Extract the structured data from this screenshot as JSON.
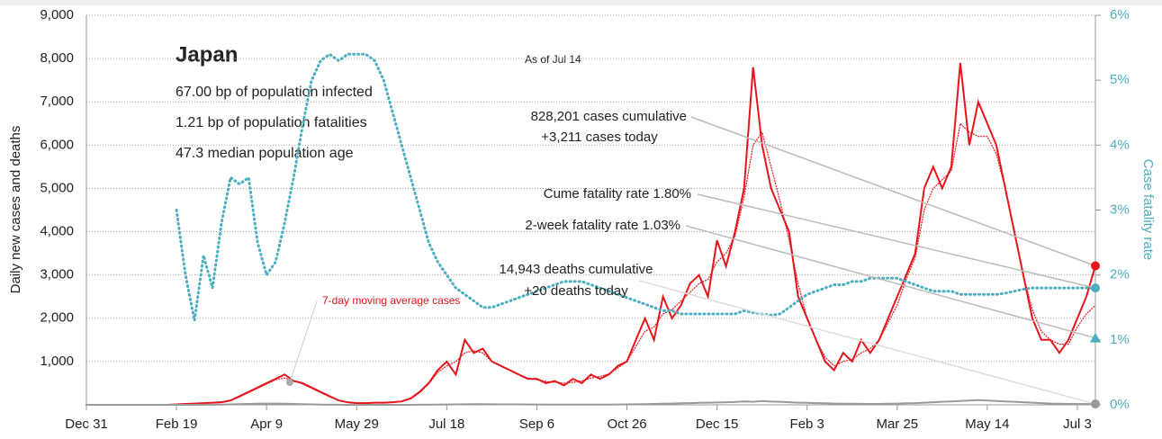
{
  "chart_data": {
    "type": "line",
    "title": "Japan",
    "stats": [
      "67.00 bp of population infected",
      "1.21 bp of population fatalities",
      "47.3 median population age"
    ],
    "as_of": "As of Jul 14",
    "ylabel": "Daily new cases and deaths",
    "y2label": "Case fatality rate",
    "xlim": [
      0,
      560
    ],
    "xticks": [
      {
        "value": 0,
        "label": "Dec 31"
      },
      {
        "value": 50,
        "label": "Feb 19"
      },
      {
        "value": 100,
        "label": "Apr 9"
      },
      {
        "value": 150,
        "label": "May 29"
      },
      {
        "value": 200,
        "label": "Jul 18"
      },
      {
        "value": 250,
        "label": "Sep 6"
      },
      {
        "value": 300,
        "label": "Oct 26"
      },
      {
        "value": 350,
        "label": "Dec 15"
      },
      {
        "value": 400,
        "label": "Feb 3"
      },
      {
        "value": 450,
        "label": "Mar 25"
      },
      {
        "value": 500,
        "label": "May 14"
      },
      {
        "value": 550,
        "label": "Jul 3"
      }
    ],
    "ylim": [
      0,
      9000
    ],
    "yticks": [
      {
        "value": 1000,
        "label": "1,000"
      },
      {
        "value": 2000,
        "label": "2,000"
      },
      {
        "value": 3000,
        "label": "3,000"
      },
      {
        "value": 4000,
        "label": "4,000"
      },
      {
        "value": 5000,
        "label": "5,000"
      },
      {
        "value": 6000,
        "label": "6,000"
      },
      {
        "value": 7000,
        "label": "7,000"
      },
      {
        "value": 8000,
        "label": "8,000"
      },
      {
        "value": 9000,
        "label": "9,000"
      }
    ],
    "y2lim": [
      0,
      6
    ],
    "y2ticks": [
      {
        "value": 0,
        "label": "0%"
      },
      {
        "value": 1,
        "label": "1%"
      },
      {
        "value": 2,
        "label": "2%"
      },
      {
        "value": 3,
        "label": "3%"
      },
      {
        "value": 4,
        "label": "4%"
      },
      {
        "value": 5,
        "label": "5%"
      },
      {
        "value": 6,
        "label": "6%"
      }
    ],
    "grid": true,
    "x": [
      0,
      5,
      10,
      15,
      20,
      25,
      30,
      35,
      40,
      45,
      50,
      55,
      60,
      65,
      70,
      75,
      80,
      85,
      90,
      95,
      100,
      105,
      110,
      115,
      120,
      125,
      130,
      135,
      140,
      145,
      150,
      155,
      160,
      165,
      170,
      175,
      180,
      185,
      190,
      195,
      200,
      205,
      210,
      215,
      220,
      225,
      230,
      235,
      240,
      245,
      250,
      255,
      260,
      265,
      270,
      275,
      280,
      285,
      290,
      295,
      300,
      305,
      310,
      315,
      320,
      325,
      330,
      335,
      340,
      345,
      350,
      355,
      360,
      365,
      370,
      375,
      380,
      385,
      390,
      395,
      400,
      405,
      410,
      415,
      420,
      425,
      430,
      435,
      440,
      445,
      450,
      455,
      460,
      465,
      470,
      475,
      480,
      485,
      490,
      495,
      500,
      505,
      510,
      515,
      520,
      525,
      530,
      535,
      540,
      545,
      550,
      555,
      560
    ],
    "series": [
      {
        "color": "#e8141c",
        "style": "solid",
        "values": [
          0,
          0,
          0,
          0,
          0,
          0,
          0,
          0,
          0,
          0,
          10,
          20,
          30,
          40,
          50,
          60,
          100,
          200,
          300,
          400,
          500,
          600,
          700,
          550,
          500,
          400,
          300,
          200,
          100,
          60,
          40,
          40,
          50,
          50,
          60,
          80,
          150,
          300,
          500,
          800,
          1000,
          700,
          1500,
          1200,
          1300,
          1000,
          900,
          800,
          700,
          600,
          600,
          500,
          550,
          450,
          600,
          500,
          700,
          600,
          700,
          900,
          1000,
          1500,
          2000,
          1500,
          2500,
          2000,
          2300,
          2800,
          3000,
          2500,
          3800,
          3200,
          4000,
          5000,
          7800,
          6000,
          5000,
          4500,
          4000,
          2500,
          2000,
          1500,
          1000,
          800,
          1200,
          1000,
          1500,
          1200,
          1500,
          2000,
          2500,
          3000,
          3500,
          5000,
          5500,
          5000,
          5500,
          7900,
          6000,
          7000,
          6500,
          6000,
          5000,
          4000,
          3000,
          2000,
          1500,
          1500,
          1200,
          1500,
          2000,
          2500,
          3211
        ]
      },
      {
        "name": "7-day moving average cases",
        "color": "#e8141c",
        "style": "dotted",
        "values": [
          0,
          0,
          0,
          0,
          0,
          0,
          0,
          0,
          0,
          0,
          10,
          20,
          30,
          40,
          50,
          70,
          100,
          180,
          280,
          380,
          480,
          580,
          620,
          560,
          480,
          380,
          280,
          180,
          100,
          60,
          40,
          40,
          45,
          50,
          60,
          80,
          140,
          280,
          480,
          750,
          900,
          1000,
          1200,
          1250,
          1200,
          1000,
          900,
          800,
          700,
          620,
          580,
          540,
          520,
          500,
          520,
          550,
          620,
          650,
          720,
          850,
          1000,
          1350,
          1700,
          1800,
          2100,
          2200,
          2400,
          2600,
          2800,
          2900,
          3300,
          3500,
          3900,
          4800,
          6000,
          6300,
          5500,
          4700,
          3800,
          2800,
          2000,
          1500,
          1100,
          900,
          1000,
          1050,
          1200,
          1300,
          1500,
          1900,
          2300,
          2900,
          3400,
          4500,
          5000,
          5200,
          5400,
          6500,
          6300,
          6200,
          6200,
          5800,
          5000,
          4000,
          3000,
          2200,
          1700,
          1500,
          1400,
          1400,
          1800,
          2100,
          2300
        ]
      },
      {
        "color": "#999999",
        "style": "solid",
        "values": [
          0,
          0,
          0,
          0,
          0,
          0,
          0,
          0,
          0,
          0,
          0,
          0,
          1,
          2,
          3,
          5,
          10,
          15,
          20,
          25,
          30,
          30,
          25,
          20,
          15,
          10,
          5,
          3,
          2,
          1,
          1,
          1,
          1,
          1,
          1,
          1,
          1,
          2,
          3,
          5,
          8,
          10,
          12,
          15,
          15,
          12,
          10,
          10,
          10,
          8,
          8,
          7,
          6,
          6,
          5,
          5,
          6,
          6,
          7,
          8,
          10,
          12,
          15,
          20,
          25,
          30,
          35,
          40,
          45,
          50,
          55,
          60,
          65,
          80,
          70,
          90,
          75,
          70,
          60,
          50,
          45,
          40,
          35,
          30,
          25,
          25,
          22,
          20,
          20,
          25,
          30,
          35,
          40,
          50,
          60,
          70,
          80,
          90,
          100,
          110,
          100,
          90,
          80,
          70,
          60,
          50,
          40,
          30,
          25,
          20,
          20,
          18,
          20
        ]
      },
      {
        "color": "#4aaec0",
        "style": "dotted",
        "axis": "y2",
        "values": [
          null,
          null,
          null,
          null,
          null,
          null,
          null,
          null,
          null,
          null,
          3.0,
          2.0,
          1.3,
          2.3,
          1.8,
          2.8,
          3.5,
          3.4,
          3.5,
          2.5,
          2.0,
          2.2,
          2.8,
          3.5,
          4.3,
          5.0,
          5.3,
          5.4,
          5.3,
          5.4,
          5.4,
          5.4,
          5.3,
          5.0,
          4.5,
          4.0,
          3.5,
          3.0,
          2.5,
          2.2,
          2.0,
          1.8,
          1.7,
          1.6,
          1.5,
          1.5,
          1.55,
          1.6,
          1.65,
          1.7,
          1.75,
          1.8,
          1.85,
          1.9,
          1.9,
          1.9,
          1.85,
          1.8,
          1.75,
          1.7,
          1.65,
          1.6,
          1.55,
          1.5,
          1.45,
          1.45,
          1.4,
          1.4,
          1.4,
          1.4,
          1.4,
          1.4,
          1.4,
          1.45,
          1.42,
          1.4,
          1.38,
          1.4,
          1.5,
          1.6,
          1.7,
          1.75,
          1.8,
          1.85,
          1.85,
          1.9,
          1.9,
          1.95,
          1.95,
          1.95,
          1.95,
          1.9,
          1.85,
          1.8,
          1.75,
          1.75,
          1.75,
          1.7,
          1.7,
          1.7,
          1.7,
          1.7,
          1.72,
          1.75,
          1.78,
          1.8,
          1.8,
          1.8,
          1.8,
          1.8,
          1.8,
          1.8,
          1.8
        ]
      }
    ],
    "annotations": [
      {
        "lines": [
          "828,201 cases cumulative",
          "+3,211 cases today"
        ],
        "value": 3211,
        "color": "#e8141c",
        "marker": "circle"
      },
      {
        "lines": [
          "Cume fatality rate 1.80%"
        ],
        "value": 1.8,
        "axis": "y2",
        "color": "#4aaec0",
        "marker": "circle"
      },
      {
        "lines": [
          "2-week fatality rate 1.03%"
        ],
        "value": 1.03,
        "axis": "y2",
        "color": "#4aaec0",
        "marker": "triangle"
      },
      {
        "lines": [
          "14,943 deaths cumulative",
          "+20 deaths today"
        ],
        "value": 20,
        "color": "#999999",
        "marker": "circle"
      }
    ]
  }
}
